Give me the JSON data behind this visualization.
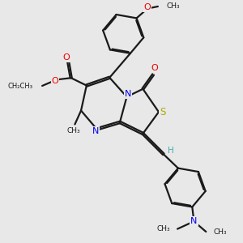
{
  "bg_color": "#e8e8e8",
  "bond_color": "#1a1a1a",
  "bond_width": 1.6,
  "N_color": "#0000ee",
  "O_color": "#ee0000",
  "S_color": "#aaaa00",
  "H_color": "#44aaaa",
  "fig_width": 3.0,
  "fig_height": 3.0,
  "dpi": 100,
  "xlim": [
    -3.2,
    3.8
  ],
  "ylim": [
    -3.5,
    3.5
  ]
}
